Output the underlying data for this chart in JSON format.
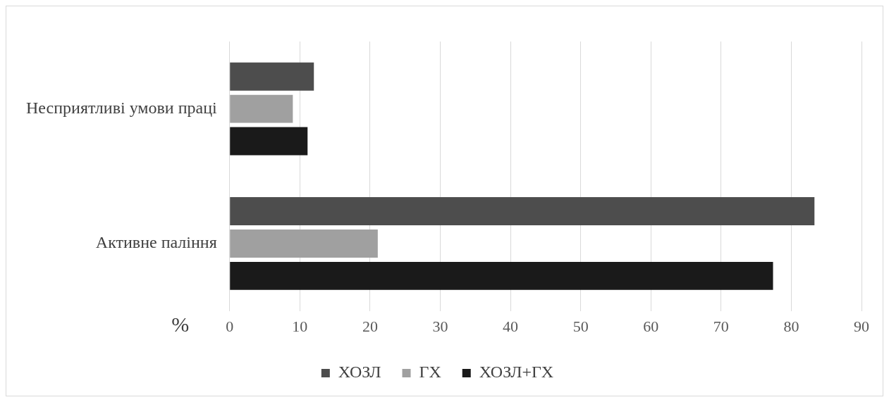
{
  "chart_data": {
    "type": "bar",
    "orientation": "horizontal",
    "xlabel": "%",
    "categories": [
      "Несприятливі умови праці",
      "Активне паління"
    ],
    "series": [
      {
        "name": "ХОЗЛ",
        "color": "#4d4d4d",
        "values": [
          12,
          83.3
        ]
      },
      {
        "name": "ГХ",
        "color": "#a0a0a0",
        "values": [
          9,
          21.1
        ]
      },
      {
        "name": "ХОЗЛ+ГХ",
        "color": "#1a1a1a",
        "values": [
          11.1,
          77.4
        ]
      }
    ],
    "xlim": [
      0,
      90
    ],
    "xticks": [
      0,
      10,
      20,
      30,
      40,
      50,
      60,
      70,
      80,
      90
    ],
    "grid": "x",
    "legend": "bottom"
  }
}
